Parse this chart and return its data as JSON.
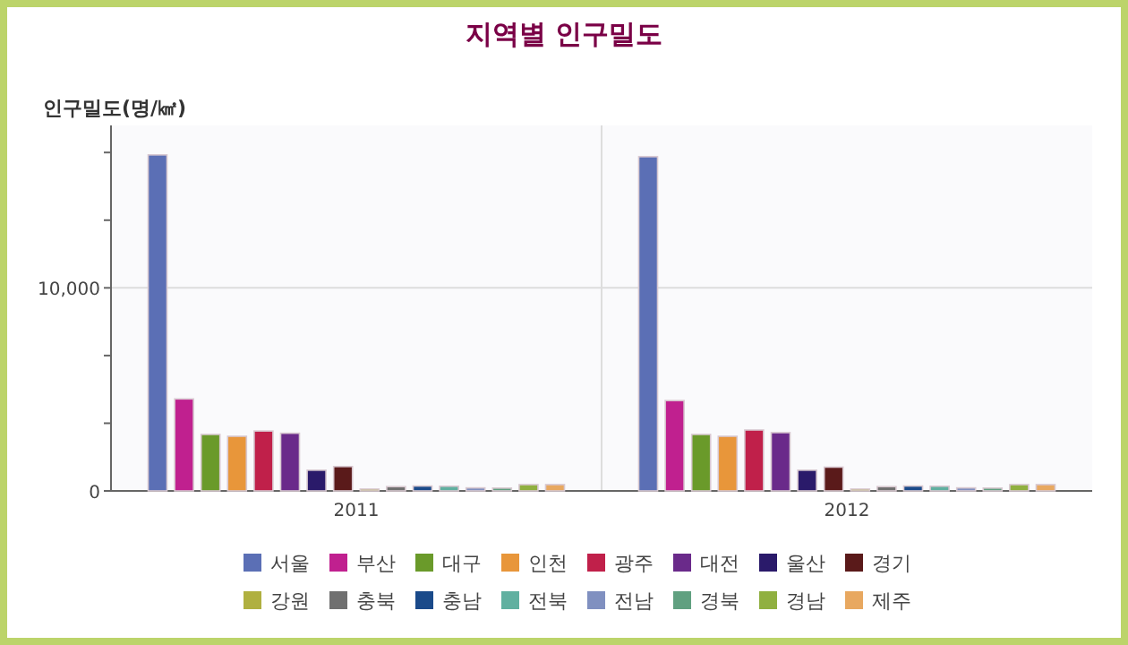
{
  "chart_data": {
    "type": "bar",
    "title": "지역별 인구밀도",
    "ylabel": "인구밀도(명/㎢)",
    "categories": [
      "2011",
      "2012"
    ],
    "ylim": [
      0,
      18000
    ],
    "yticks": [
      0,
      {
        "value": 3333,
        "label": null
      },
      {
        "value": 6667,
        "label": null
      },
      {
        "value": 10000,
        "label": "10,000"
      },
      {
        "value": 13333,
        "label": null
      },
      {
        "value": 16667,
        "label": null
      }
    ],
    "grid": "y",
    "legend": "bottom",
    "series": [
      {
        "name": "서울",
        "color": "#5b6fb5",
        "values": [
          16550,
          16460
        ]
      },
      {
        "name": "부산",
        "color": "#c0208f",
        "values": [
          4530,
          4450
        ]
      },
      {
        "name": "대구",
        "color": "#6a9a2a",
        "values": [
          2780,
          2780
        ]
      },
      {
        "name": "인천",
        "color": "#e8963a",
        "values": [
          2690,
          2690
        ]
      },
      {
        "name": "광주",
        "color": "#c0204a",
        "values": [
          2950,
          3000
        ]
      },
      {
        "name": "대전",
        "color": "#6a2a8a",
        "values": [
          2840,
          2870
        ]
      },
      {
        "name": "울산",
        "color": "#2a1a6a",
        "values": [
          1020,
          1020
        ]
      },
      {
        "name": "경기",
        "color": "#5a1a1a",
        "values": [
          1200,
          1170
        ]
      },
      {
        "name": "강원",
        "color": "#b0b040",
        "values": [
          90,
          90
        ]
      },
      {
        "name": "충북",
        "color": "#707070",
        "values": [
          210,
          210
        ]
      },
      {
        "name": "충남",
        "color": "#1a4a8a",
        "values": [
          240,
          240
        ]
      },
      {
        "name": "전북",
        "color": "#60b0a0",
        "values": [
          230,
          230
        ]
      },
      {
        "name": "전남",
        "color": "#8090c0",
        "values": [
          150,
          150
        ]
      },
      {
        "name": "경북",
        "color": "#60a080",
        "values": [
          140,
          140
        ]
      },
      {
        "name": "경남",
        "color": "#90b040",
        "values": [
          310,
          310
        ]
      },
      {
        "name": "제주",
        "color": "#e8a860",
        "values": [
          310,
          310
        ]
      }
    ]
  }
}
